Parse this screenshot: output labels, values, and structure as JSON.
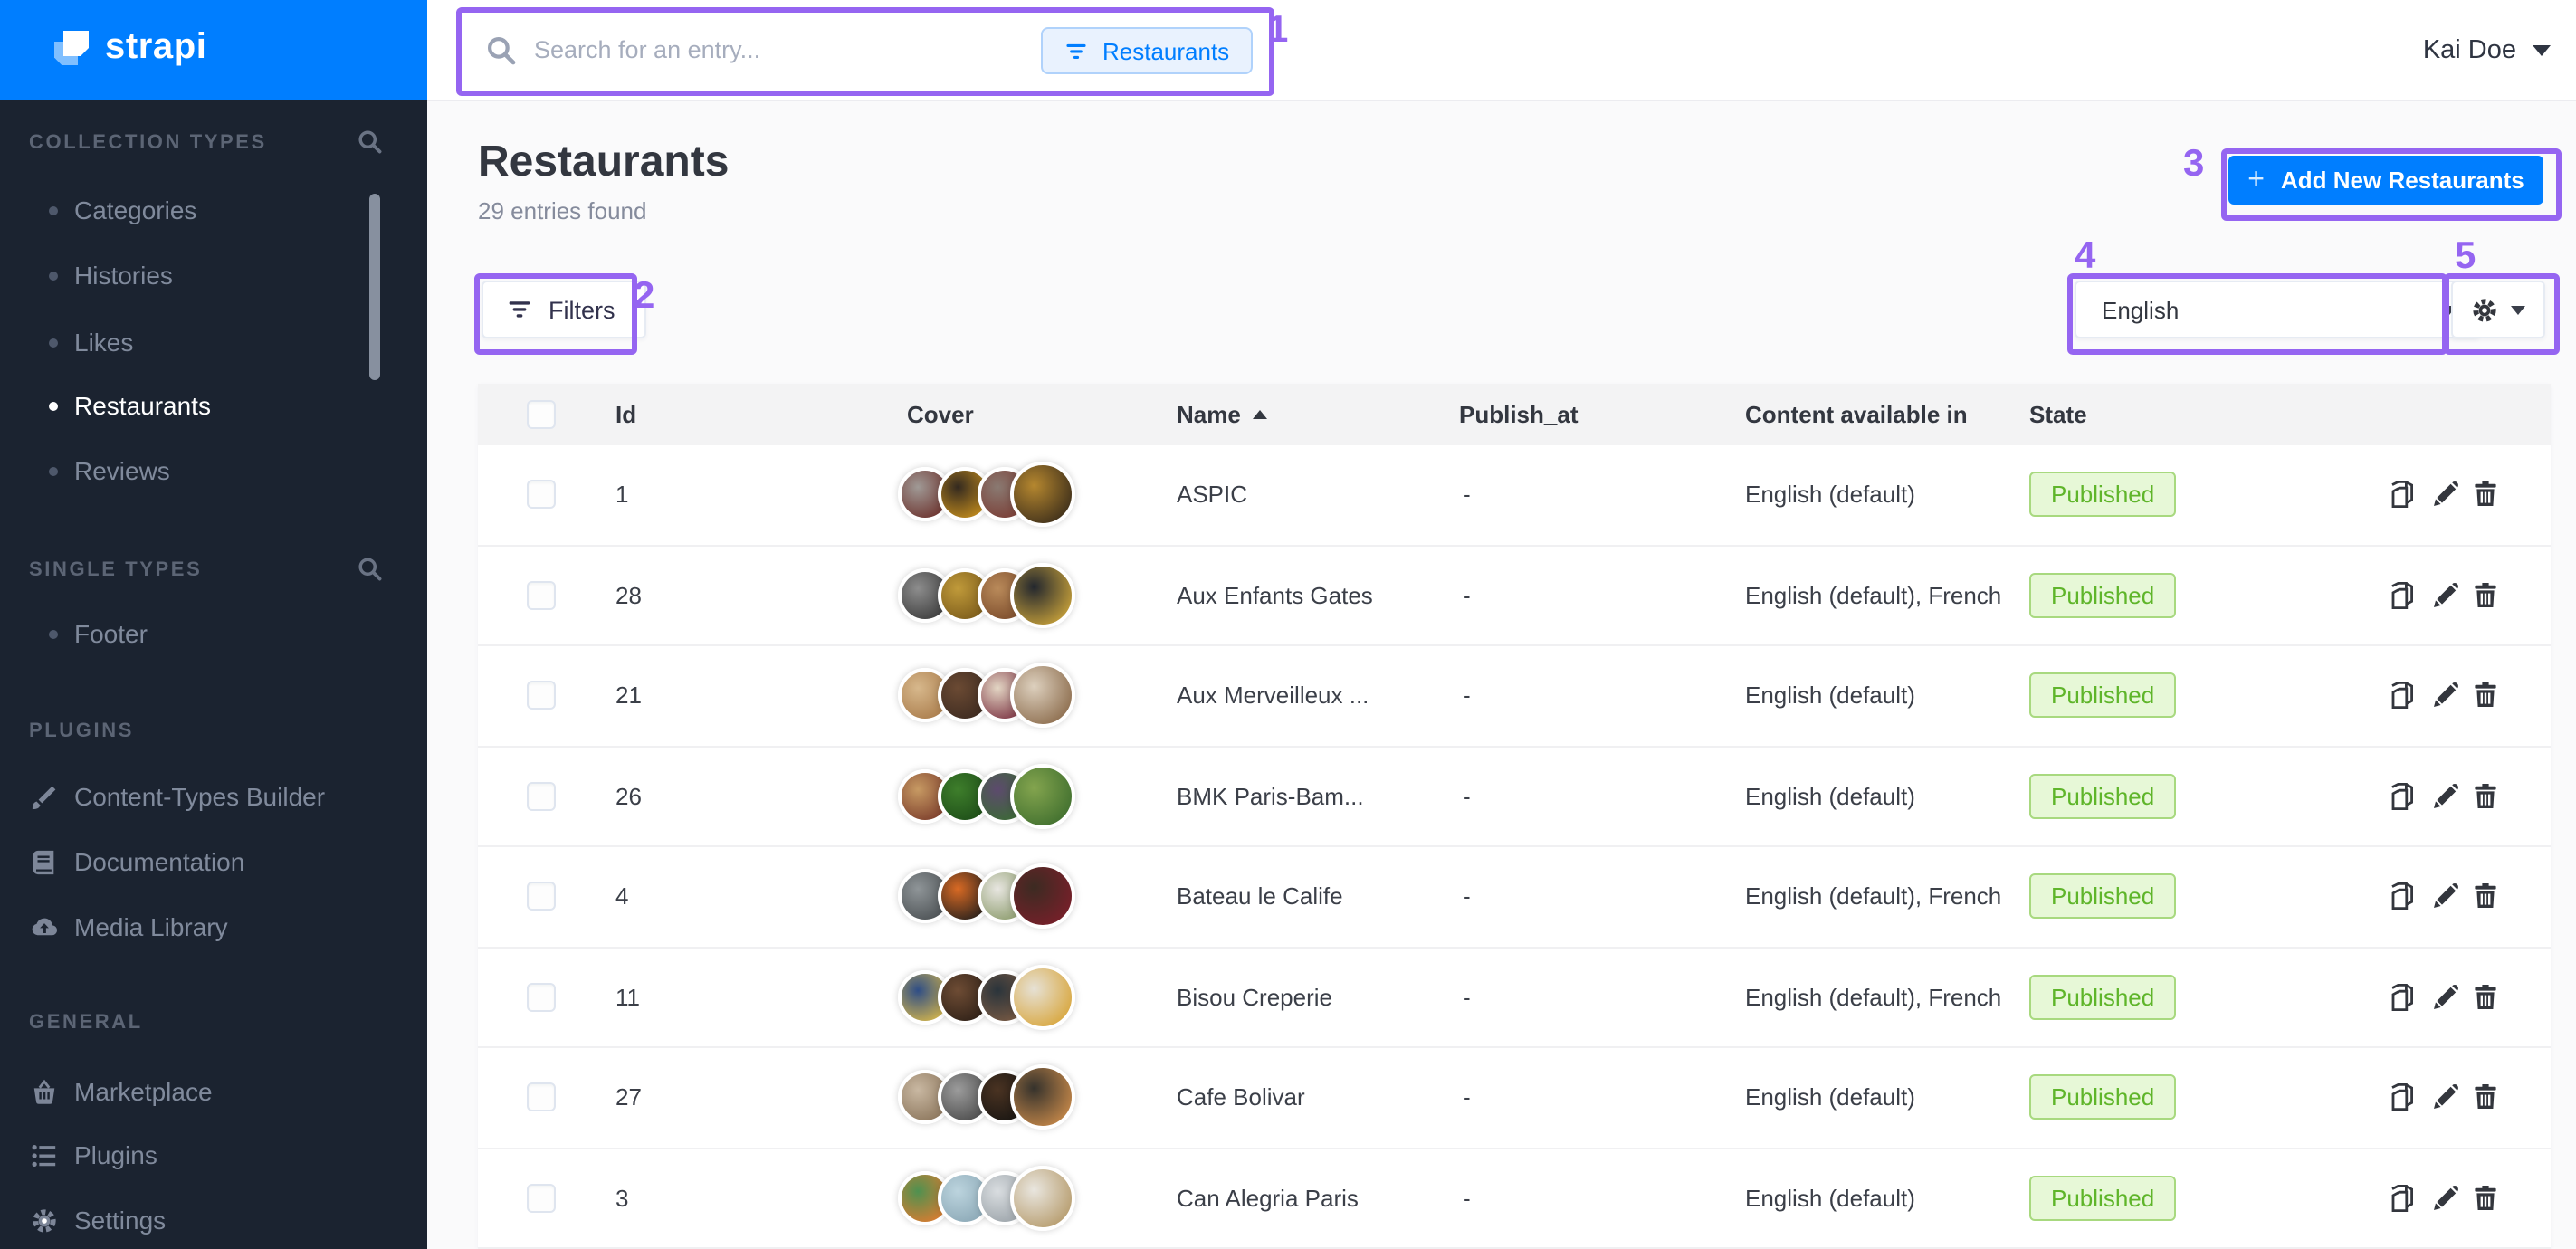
{
  "colors": {
    "accent": "#007eff",
    "ann": "#9565f1",
    "chipBg": "#e9f2fe",
    "chipBorder": "#b0d2fb",
    "badgeText": "#5fb52a",
    "badgeBg": "#e7f8d7",
    "badgeBorder": "#a8d97f"
  },
  "sidebar": {
    "logo_text": "strapi",
    "sections": [
      {
        "label": "COLLECTION TYPES",
        "has_search": true,
        "items": [
          {
            "label": "Categories"
          },
          {
            "label": "Histories"
          },
          {
            "label": "Likes"
          },
          {
            "label": "Restaurants",
            "active": true
          },
          {
            "label": "Reviews"
          }
        ]
      },
      {
        "label": "SINGLE TYPES",
        "has_search": true,
        "items": [
          {
            "label": "Footer"
          }
        ]
      },
      {
        "label": "PLUGINS",
        "items": [
          {
            "label": "Content-Types Builder",
            "icon": "brush"
          },
          {
            "label": "Documentation",
            "icon": "book"
          },
          {
            "label": "Media Library",
            "icon": "cloud"
          }
        ]
      },
      {
        "label": "GENERAL",
        "items": [
          {
            "label": "Marketplace",
            "icon": "basket"
          },
          {
            "label": "Plugins",
            "icon": "list"
          },
          {
            "label": "Settings",
            "icon": "gear"
          }
        ]
      }
    ]
  },
  "topbar": {
    "search_placeholder": "Search for an entry...",
    "filter_chip": "Restaurants",
    "user_name": "Kai Doe"
  },
  "main": {
    "title": "Restaurants",
    "subtitle": "29 entries found",
    "add_button_plus": "+",
    "add_button_label": "Add New Restaurants",
    "filters_label": "Filters",
    "locale_selected": "English",
    "table": {
      "columns": [
        "Id",
        "Cover",
        "Name",
        "Publish_at",
        "Content available in",
        "State"
      ],
      "sorted_column": "Name",
      "sort_direction": "asc",
      "rows": [
        {
          "id": "1",
          "name": "ASPIC",
          "publish_at": "-",
          "locales": "English (default)",
          "state": "Published",
          "cover": [
            [
              "#a09a96",
              "#6b2f2a"
            ],
            [
              "#33291f",
              "#c8901e"
            ],
            [
              "#8a7a72",
              "#7a3b33"
            ],
            [
              "#b5872f",
              "#3a2c1a"
            ]
          ]
        },
        {
          "id": "28",
          "name": "Aux Enfants Gates",
          "publish_at": "-",
          "locales": "English (default), French",
          "state": "Published",
          "cover": [
            [
              "#8d8d8d",
              "#3b3b3b"
            ],
            [
              "#c09a3a",
              "#7a5a1a"
            ],
            [
              "#b98a5a",
              "#7a4a2a"
            ],
            [
              "#23272e",
              "#caa33a"
            ]
          ]
        },
        {
          "id": "21",
          "name": "Aux Merveilleux ...",
          "publish_at": "-",
          "locales": "English (default)",
          "state": "Published",
          "cover": [
            [
              "#d7b88c",
              "#a97b4a"
            ],
            [
              "#6b4a33",
              "#3c2a20"
            ],
            [
              "#e3d6c4",
              "#7a3040"
            ],
            [
              "#ddd0be",
              "#8a6a4a"
            ]
          ]
        },
        {
          "id": "26",
          "name": "BMK Paris-Bam...",
          "publish_at": "-",
          "locales": "English (default)",
          "state": "Published",
          "cover": [
            [
              "#c79a63",
              "#7a3b2a"
            ],
            [
              "#3e7e2b",
              "#1d4d18"
            ],
            [
              "#5d4a6e",
              "#3a6b33"
            ],
            [
              "#83a44e",
              "#3f6e2e"
            ]
          ]
        },
        {
          "id": "4",
          "name": "Bateau le Calife",
          "publish_at": "-",
          "locales": "English (default), French",
          "state": "Published",
          "cover": [
            [
              "#8f9598",
              "#4a4f52"
            ],
            [
              "#d96a24",
              "#231f1c"
            ],
            [
              "#e8e6e1",
              "#8a9a6a"
            ],
            [
              "#3c2b22",
              "#7a1f2a"
            ]
          ]
        },
        {
          "id": "11",
          "name": "Bisou Creperie",
          "publish_at": "-",
          "locales": "English (default), French",
          "state": "Published",
          "cover": [
            [
              "#2e4d86",
              "#d8b84a"
            ],
            [
              "#6e4c34",
              "#2e2017"
            ],
            [
              "#2a343b",
              "#7a5a43"
            ],
            [
              "#e6e1d5",
              "#d8a53a"
            ]
          ]
        },
        {
          "id": "27",
          "name": "Cafe Bolivar",
          "publish_at": "-",
          "locales": "English (default)",
          "state": "Published",
          "cover": [
            [
              "#c9b8a2",
              "#8a745a"
            ],
            [
              "#9c9c9c",
              "#4a4a4a"
            ],
            [
              "#4a3322",
              "#181512"
            ],
            [
              "#35322c",
              "#c98a4a"
            ]
          ]
        },
        {
          "id": "3",
          "name": "Can Alegria Paris",
          "publish_at": "-",
          "locales": "English (default)",
          "state": "Published",
          "cover": [
            [
              "#4e9150",
              "#e07b2f"
            ],
            [
              "#bcd4de",
              "#8aa7b5"
            ],
            [
              "#d9dde0",
              "#9aa2a8"
            ],
            [
              "#e9e6df",
              "#b59a6a"
            ]
          ]
        }
      ]
    }
  },
  "annotations": [
    {
      "num": "1"
    },
    {
      "num": "2"
    },
    {
      "num": "3"
    },
    {
      "num": "4"
    },
    {
      "num": "5"
    }
  ]
}
